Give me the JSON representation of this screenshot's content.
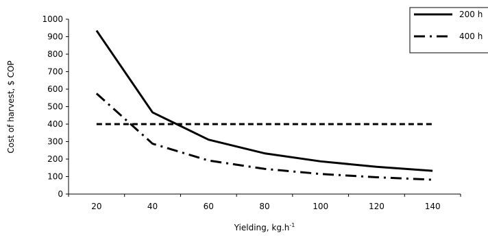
{
  "chart_data": {
    "type": "line",
    "title": "",
    "xlabel": "Yielding, kg.h",
    "xlabel_sup": "-1",
    "ylabel": "Cost of harvest, $ COP",
    "x": [
      20,
      40,
      60,
      80,
      100,
      120,
      140
    ],
    "xticks": [
      "20",
      "40",
      "60",
      "80",
      "100",
      "120",
      "140"
    ],
    "yticks": [
      "0",
      "100",
      "200",
      "300",
      "400",
      "500",
      "600",
      "700",
      "800",
      "900",
      "1000"
    ],
    "ylim": [
      0,
      1000
    ],
    "grid": false,
    "legend_position": "top-right",
    "series": [
      {
        "name": "200 h",
        "values": [
          935,
          467,
          311,
          233,
          187,
          156,
          133
        ],
        "style": "solid",
        "color": "#000000"
      },
      {
        "name": "400 h",
        "values": [
          575,
          288,
          192,
          144,
          115,
          96,
          82
        ],
        "style": "dash-dot",
        "color": "#000000"
      },
      {
        "name": "",
        "values": [
          400,
          400,
          400,
          400,
          400,
          400,
          400
        ],
        "style": "dashed",
        "color": "#000000"
      }
    ]
  }
}
